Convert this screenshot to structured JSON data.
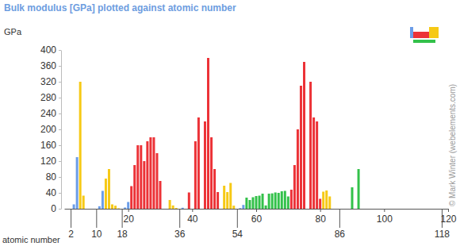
{
  "chart_data": {
    "type": "bar",
    "title": "Bulk modulus [GPa] plotted against atomic number",
    "x_label": "atomic number",
    "y_label": "GPa",
    "credit": "© Mark Winter (webelements.com)",
    "x": [
      1,
      2,
      3,
      4,
      5,
      6,
      7,
      8,
      9,
      10,
      11,
      12,
      13,
      14,
      15,
      16,
      17,
      18,
      19,
      20,
      21,
      22,
      23,
      24,
      25,
      26,
      27,
      28,
      29,
      30,
      31,
      32,
      33,
      34,
      35,
      36,
      37,
      38,
      39,
      40,
      41,
      42,
      43,
      44,
      45,
      46,
      47,
      48,
      49,
      50,
      51,
      52,
      53,
      54,
      55,
      56,
      57,
      58,
      59,
      60,
      61,
      62,
      63,
      64,
      65,
      66,
      67,
      68,
      69,
      70,
      71,
      72,
      73,
      74,
      75,
      76,
      77,
      78,
      79,
      80,
      81,
      82,
      83,
      84,
      85,
      86,
      87,
      88,
      89,
      90,
      91,
      92,
      93,
      94,
      95,
      96,
      97,
      98,
      99,
      100,
      101,
      102,
      103,
      104,
      105,
      106,
      107,
      108,
      109,
      110,
      111,
      112,
      113,
      114,
      115,
      116,
      117,
      118,
      119,
      120
    ],
    "values": [
      null,
      null,
      11,
      130,
      320,
      33,
      null,
      null,
      null,
      null,
      6.3,
      45,
      76,
      100,
      11,
      7.7,
      1.1,
      null,
      3.1,
      17,
      57,
      110,
      160,
      160,
      120,
      170,
      180,
      180,
      140,
      70,
      null,
      null,
      22,
      8.3,
      1.9,
      null,
      2.5,
      null,
      41,
      null,
      170,
      230,
      null,
      220,
      380,
      180,
      100,
      42,
      null,
      58,
      42,
      65,
      7.7,
      null,
      1.6,
      9.6,
      28,
      22,
      29,
      32,
      33,
      38,
      8.3,
      38,
      38.7,
      41,
      40,
      44,
      45,
      31,
      48,
      110,
      200,
      310,
      370,
      null,
      320,
      230,
      220,
      25,
      43,
      46,
      31,
      null,
      null,
      null,
      null,
      null,
      null,
      54,
      null,
      100,
      null,
      null,
      null,
      null,
      null,
      null,
      null,
      null,
      null,
      null,
      null,
      null,
      null,
      null,
      null,
      null,
      null,
      null,
      null,
      null,
      null,
      null,
      null,
      null,
      null,
      null,
      null,
      null
    ],
    "colors": [
      null,
      null,
      "#6b9de8",
      "#6b9de8",
      "#f6c915",
      "#f6c915",
      null,
      null,
      null,
      null,
      "#6b9de8",
      "#6b9de8",
      "#f6c915",
      "#f6c915",
      "#f6c915",
      "#f6c915",
      "#f6c915",
      null,
      "#6b9de8",
      "#6b9de8",
      "#ec3237",
      "#ec3237",
      "#ec3237",
      "#ec3237",
      "#ec3237",
      "#ec3237",
      "#ec3237",
      "#ec3237",
      "#ec3237",
      "#ec3237",
      null,
      null,
      "#f6c915",
      "#f6c915",
      "#f6c915",
      null,
      "#6b9de8",
      null,
      "#ec3237",
      null,
      "#ec3237",
      "#ec3237",
      null,
      "#ec3237",
      "#ec3237",
      "#ec3237",
      "#ec3237",
      "#ec3237",
      null,
      "#f6c915",
      "#f6c915",
      "#f6c915",
      "#f6c915",
      null,
      "#6b9de8",
      "#6b9de8",
      "#33c14a",
      "#33c14a",
      "#33c14a",
      "#33c14a",
      "#33c14a",
      "#33c14a",
      "#33c14a",
      "#33c14a",
      "#33c14a",
      "#33c14a",
      "#33c14a",
      "#33c14a",
      "#33c14a",
      "#33c14a",
      "#ec3237",
      "#ec3237",
      "#ec3237",
      "#ec3237",
      "#ec3237",
      null,
      "#ec3237",
      "#ec3237",
      "#ec3237",
      "#ec3237",
      "#f6c915",
      "#f6c915",
      "#f6c915",
      null,
      null,
      null,
      null,
      null,
      null,
      "#33c14a",
      null,
      "#33c14a",
      null,
      null,
      null,
      null,
      null,
      null,
      null,
      null,
      null,
      null,
      null,
      null,
      null,
      null,
      null,
      null,
      null,
      null,
      null,
      null,
      null,
      null,
      null,
      null,
      null,
      null,
      null,
      null,
      null,
      null
    ],
    "xlim": [
      0,
      120
    ],
    "xticks": [
      2,
      10,
      18,
      20,
      36,
      40,
      54,
      60,
      80,
      86,
      100,
      118,
      120
    ],
    "ylim": [
      0,
      400
    ],
    "yticks": [
      0,
      40,
      80,
      120,
      160,
      200,
      240,
      280,
      320,
      360,
      400
    ],
    "grid": false
  }
}
